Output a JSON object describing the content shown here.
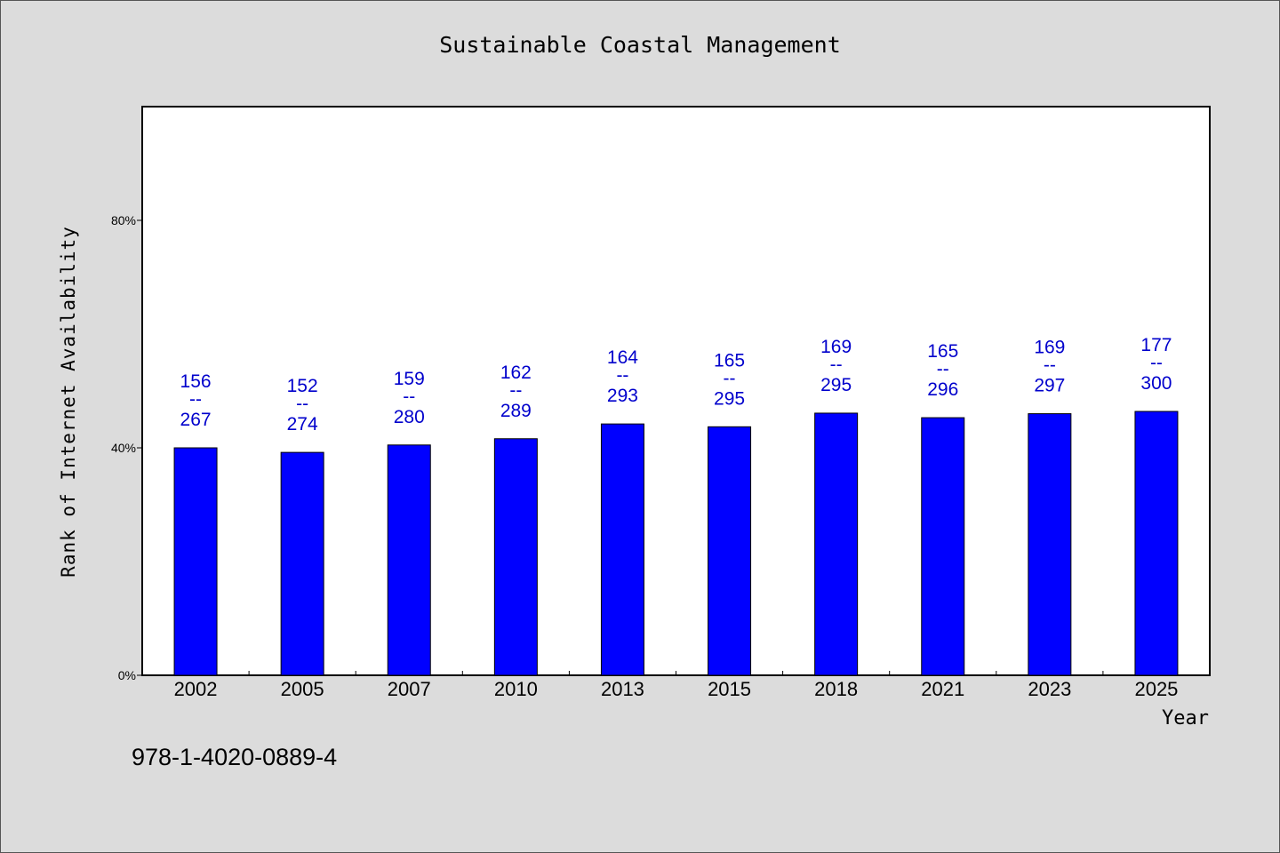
{
  "chart_data": {
    "type": "bar",
    "title": "Sustainable Coastal Management",
    "xlabel": "Year",
    "ylabel": "Rank of Internet Availability",
    "categories": [
      "2002",
      "2005",
      "2007",
      "2010",
      "2013",
      "2015",
      "2018",
      "2021",
      "2023",
      "2025"
    ],
    "values": [
      40.0,
      39.2,
      40.5,
      41.6,
      44.2,
      43.7,
      46.1,
      45.3,
      46.0,
      46.4
    ],
    "top_labels": [
      "156",
      "152",
      "159",
      "162",
      "164",
      "165",
      "169",
      "165",
      "169",
      "177"
    ],
    "bottom_labels": [
      "267",
      "274",
      "280",
      "289",
      "293",
      "295",
      "295",
      "296",
      "297",
      "300"
    ],
    "label_separator": "--",
    "yticks": [
      0,
      40,
      80
    ],
    "ytick_labels": [
      "0%",
      "40%",
      "80%"
    ],
    "ylim": [
      0,
      100
    ],
    "grid": false,
    "legend": "none",
    "bar_color": "#0000ff",
    "label_color": "#0000cc"
  },
  "footer": {
    "isbn": "978-1-4020-0889-4"
  }
}
